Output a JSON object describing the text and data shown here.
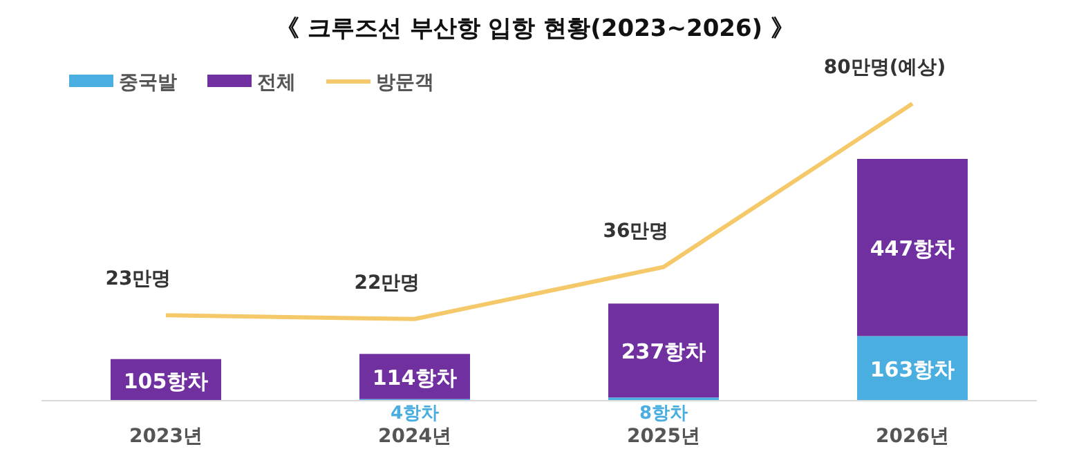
{
  "chart_data": {
    "type": "bar",
    "title": "《 크루즈선 부산항 입항 현황(2023~2026) 》",
    "stacked": true,
    "legend": "top left",
    "categories": [
      "2023년",
      "2024년",
      "2025년",
      "2026년"
    ],
    "series": [
      {
        "name": "중국발",
        "color": "#4baee0",
        "values": [
          null,
          4,
          8,
          163
        ],
        "value_labels": [
          null,
          "4항차",
          "8항차",
          "163항차"
        ]
      },
      {
        "name": "전체",
        "color": "#7030a0",
        "values": [
          105,
          114,
          237,
          447
        ],
        "value_labels": [
          "105항차",
          "114항차",
          "237항차",
          "447항차"
        ]
      },
      {
        "name": "방문객",
        "type": "line",
        "axis": "y2",
        "marker": "none",
        "line_style": "solid",
        "color": "#f5c96a",
        "values": [
          23,
          22,
          36,
          80
        ],
        "value_labels": [
          "23만명",
          "22만명",
          "36만명",
          "80만명(예상)"
        ]
      }
    ]
  }
}
